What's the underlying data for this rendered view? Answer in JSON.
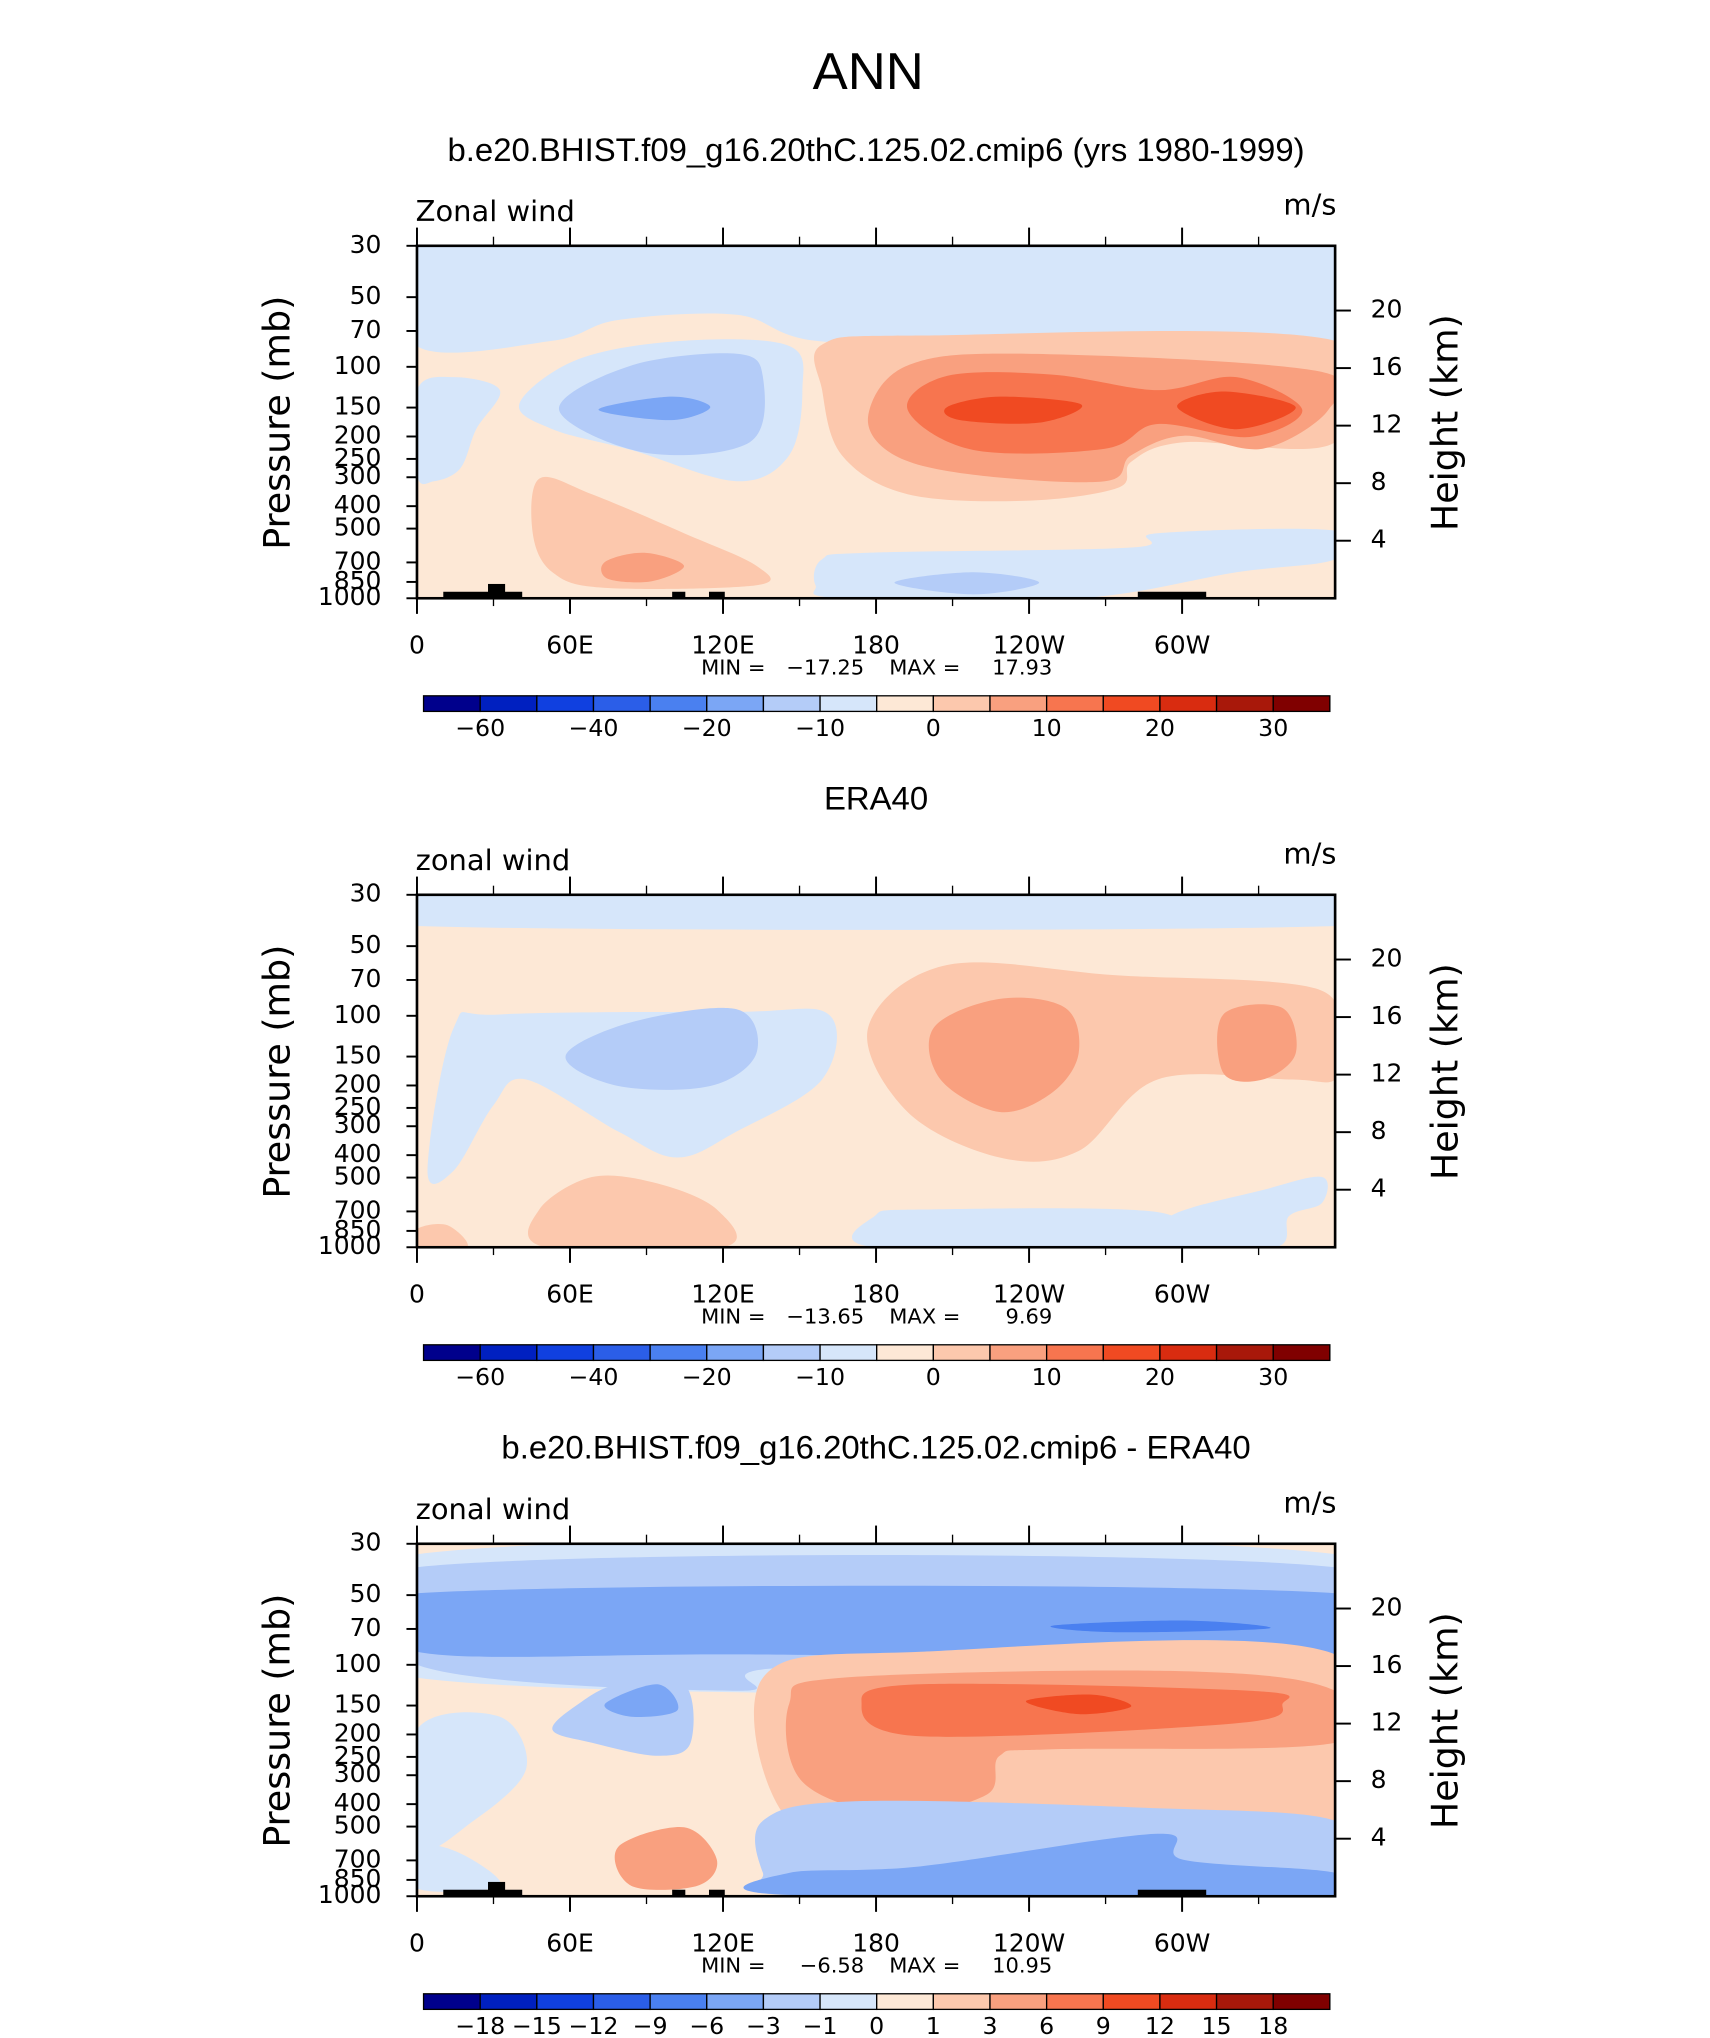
{
  "title": "ANN",
  "chart_data": [
    {
      "type": "contour",
      "title": "b.e20.BHIST.f09_g16.20thC.125.02.cmip6 (yrs 1980-1999)",
      "left_label": "Zonal wind",
      "right_label": "m/s",
      "ylabel": "Pressure (mb)",
      "y2label": "Height (km)",
      "ylog": true,
      "xlim": [
        0,
        360
      ],
      "xticks": [
        0,
        {
          "value": 60,
          "label": "60E"
        },
        {
          "value": 120,
          "label": "120E"
        },
        180,
        {
          "value": 240,
          "label": "120W"
        },
        {
          "value": 300,
          "label": "60W"
        }
      ],
      "ylim": [
        1000,
        30
      ],
      "yticks": [
        30,
        50,
        70,
        100,
        150,
        200,
        250,
        300,
        400,
        500,
        700,
        850,
        1000
      ],
      "y2lim": [
        0,
        24.5
      ],
      "y2ticks": [
        4,
        8,
        12,
        16,
        20
      ],
      "min_label": "MIN =",
      "min": {
        "value": -17.25,
        "label": "−17.25"
      },
      "max_label": "MAX =",
      "max": 17.93,
      "colorbar": {
        "colors": [
          "#00008c",
          "#0020c0",
          "#1040e0",
          "#2b5ee8",
          "#4a80f0",
          "#7ba6f5",
          "#b4ccf8",
          "#d6e6fa",
          "#fde8d6",
          "#fcc8ad",
          "#f9a07f",
          "#f7754f",
          "#f04a22",
          "#d92c10",
          "#a8180a",
          "#800000"
        ],
        "ticks": [
          {
            "value": -60,
            "label": "−60"
          },
          {
            "value": -40,
            "label": "−40"
          },
          {
            "value": -20,
            "label": "−20"
          },
          {
            "value": -10,
            "label": "−10"
          },
          0,
          10,
          20,
          30
        ]
      }
    },
    {
      "type": "contour",
      "title": "ERA40",
      "left_label": "zonal wind",
      "right_label": "m/s",
      "ylabel": "Pressure (mb)",
      "y2label": "Height (km)",
      "ylog": true,
      "xlim": [
        0,
        360
      ],
      "xticks": [
        0,
        {
          "value": 60,
          "label": "60E"
        },
        {
          "value": 120,
          "label": "120E"
        },
        180,
        {
          "value": 240,
          "label": "120W"
        },
        {
          "value": 300,
          "label": "60W"
        }
      ],
      "ylim": [
        1000,
        30
      ],
      "yticks": [
        30,
        50,
        70,
        100,
        150,
        200,
        250,
        300,
        400,
        500,
        700,
        850,
        1000
      ],
      "y2lim": [
        0,
        24.5
      ],
      "y2ticks": [
        4,
        8,
        12,
        16,
        20
      ],
      "min_label": "MIN =",
      "min": {
        "value": -13.65,
        "label": "−13.65"
      },
      "max_label": "MAX =",
      "max": 9.69,
      "colorbar": {
        "colors": [
          "#00008c",
          "#0020c0",
          "#1040e0",
          "#2b5ee8",
          "#4a80f0",
          "#7ba6f5",
          "#b4ccf8",
          "#d6e6fa",
          "#fde8d6",
          "#fcc8ad",
          "#f9a07f",
          "#f7754f",
          "#f04a22",
          "#d92c10",
          "#a8180a",
          "#800000"
        ],
        "ticks": [
          {
            "value": -60,
            "label": "−60"
          },
          {
            "value": -40,
            "label": "−40"
          },
          {
            "value": -20,
            "label": "−20"
          },
          {
            "value": -10,
            "label": "−10"
          },
          0,
          10,
          20,
          30
        ]
      }
    },
    {
      "type": "contour",
      "title": "b.e20.BHIST.f09_g16.20thC.125.02.cmip6 - ERA40",
      "left_label": "zonal wind",
      "right_label": "m/s",
      "ylabel": "Pressure (mb)",
      "y2label": "Height (km)",
      "ylog": true,
      "xlim": [
        0,
        360
      ],
      "xticks": [
        0,
        {
          "value": 60,
          "label": "60E"
        },
        {
          "value": 120,
          "label": "120E"
        },
        180,
        {
          "value": 240,
          "label": "120W"
        },
        {
          "value": 300,
          "label": "60W"
        }
      ],
      "ylim": [
        1000,
        30
      ],
      "yticks": [
        30,
        50,
        70,
        100,
        150,
        200,
        250,
        300,
        400,
        500,
        700,
        850,
        1000
      ],
      "y2lim": [
        0,
        24.5
      ],
      "y2ticks": [
        4,
        8,
        12,
        16,
        20
      ],
      "min_label": "MIN =",
      "min": {
        "value": -6.58,
        "label": "−6.58"
      },
      "max_label": "MAX =",
      "max": 10.95,
      "colorbar": {
        "colors": [
          "#00008c",
          "#0020c0",
          "#1040e0",
          "#2b5ee8",
          "#4a80f0",
          "#7ba6f5",
          "#b4ccf8",
          "#d6e6fa",
          "#fde8d6",
          "#fcc8ad",
          "#f9a07f",
          "#f7754f",
          "#f04a22",
          "#d92c10",
          "#a8180a",
          "#800000"
        ],
        "ticks": [
          {
            "value": -18,
            "label": "−18"
          },
          {
            "value": -15,
            "label": "−15"
          },
          {
            "value": -12,
            "label": "−12"
          },
          {
            "value": -9,
            "label": "−9"
          },
          {
            "value": -6,
            "label": "−6"
          },
          {
            "value": -3,
            "label": "−3"
          },
          {
            "value": -1,
            "label": "−1"
          },
          0,
          1,
          3,
          6,
          9,
          12,
          15,
          18
        ]
      }
    }
  ]
}
